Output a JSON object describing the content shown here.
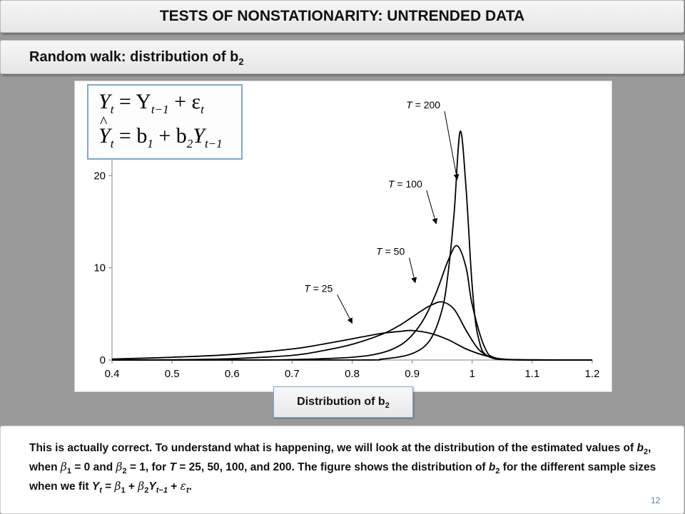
{
  "header": {
    "title": "TESTS OF NONSTATIONARITY: UNTRENDED DATA",
    "subtitle_main": "Random walk: distribution of b",
    "subtitle_sub": "2"
  },
  "equations": {
    "line1": [
      "Y",
      "t",
      "= Y",
      "t−1",
      "+ ε",
      "t"
    ],
    "line2": [
      "Y",
      "t",
      "= b",
      "1",
      "+ b",
      "2",
      "Y",
      "t−1"
    ]
  },
  "xlabel": {
    "main": "Distribution of b",
    "sub": "2"
  },
  "body_text": {
    "p1": "This is actually correct.  To understand what is happening, we will look at the distribution of the estimated values of ",
    "b": "b",
    "sub2": "2",
    "p2": ", when ",
    "beta": "β",
    "sub1": "1",
    "p3": " = 0 and ",
    "p4": " = 1, for ",
    "T": "T",
    "p5": " = 25, 50, 100, and 200.  The figure shows the distribution of ",
    "p6": " for the different sample sizes when we fit ",
    "Y": "Y",
    "t": "t",
    "p7": " = ",
    "p8": " + ",
    "tminus1": "t−1",
    "p9": " + ",
    "eps": "ε",
    "p10": "."
  },
  "page_number": "12",
  "chart_data": {
    "type": "line",
    "title": "",
    "xlabel": "Distribution of b2",
    "ylabel": "",
    "xlim": [
      0.4,
      1.2
    ],
    "ylim": [
      0,
      29
    ],
    "x_ticks": [
      "0.4",
      "0.5",
      "0.6",
      "0.7",
      "0.8",
      "0.9",
      "1",
      "1.1",
      "1.2"
    ],
    "y_ticks": [
      "0",
      "10",
      "20"
    ],
    "series": [
      {
        "name": "T = 25",
        "x": [
          0.4,
          0.5,
          0.6,
          0.7,
          0.75,
          0.8,
          0.85,
          0.88,
          0.9,
          0.93,
          0.96,
          0.99,
          1.02,
          1.05,
          1.1,
          1.2
        ],
        "y": [
          0.1,
          0.3,
          0.6,
          1.2,
          1.7,
          2.3,
          2.9,
          3.1,
          3.2,
          2.9,
          2.2,
          1.2,
          0.5,
          0.1,
          0.02,
          0
        ]
      },
      {
        "name": "T = 50",
        "x": [
          0.4,
          0.5,
          0.6,
          0.7,
          0.75,
          0.8,
          0.85,
          0.88,
          0.91,
          0.93,
          0.95,
          0.97,
          0.99,
          1.01,
          1.03,
          1.05,
          1.1,
          1.2
        ],
        "y": [
          0,
          0.03,
          0.15,
          0.5,
          1.0,
          1.7,
          2.8,
          3.8,
          5.1,
          5.9,
          6.3,
          5.5,
          3.2,
          1.2,
          0.3,
          0.05,
          0,
          0
        ]
      },
      {
        "name": "T = 100",
        "x": [
          0.4,
          0.6,
          0.7,
          0.8,
          0.85,
          0.88,
          0.9,
          0.92,
          0.94,
          0.96,
          0.975,
          0.99,
          1.0,
          1.02,
          1.04,
          1.1,
          1.2
        ],
        "y": [
          0,
          0,
          0.05,
          0.3,
          0.8,
          1.6,
          2.7,
          4.5,
          7.3,
          10.8,
          12.4,
          10.0,
          6.0,
          1.5,
          0.2,
          0,
          0
        ]
      },
      {
        "name": "T = 200",
        "x": [
          0.4,
          0.8,
          0.85,
          0.9,
          0.93,
          0.95,
          0.96,
          0.97,
          0.98,
          0.99,
          1.0,
          1.01,
          1.03,
          1.1,
          1.2
        ],
        "y": [
          0,
          0,
          0.1,
          0.7,
          2.2,
          5.5,
          9.5,
          16.0,
          24.8,
          18.5,
          8.0,
          2.5,
          0.3,
          0,
          0
        ]
      }
    ],
    "annotations": [
      {
        "text_italic": "T",
        "text": " = 200",
        "series": "T = 200",
        "label_at": [
          0.89,
          27.3
        ],
        "arrow_to": [
          0.975,
          19.6
        ]
      },
      {
        "text_italic": "T",
        "text": " = 100",
        "series": "T = 100",
        "label_at": [
          0.86,
          18.7
        ],
        "arrow_to": [
          0.94,
          14.8
        ]
      },
      {
        "text_italic": "T",
        "text": " = 50",
        "series": "T = 50",
        "label_at": [
          0.84,
          11.4
        ],
        "arrow_to": [
          0.905,
          8.4
        ]
      },
      {
        "text_italic": "T",
        "text": " = 25",
        "series": "T = 25",
        "label_at": [
          0.72,
          7.4
        ],
        "arrow_to": [
          0.8,
          4.0
        ]
      }
    ],
    "grid": false,
    "legend": "none",
    "colors": {
      "line": "#000000",
      "axis": "#808080"
    }
  }
}
